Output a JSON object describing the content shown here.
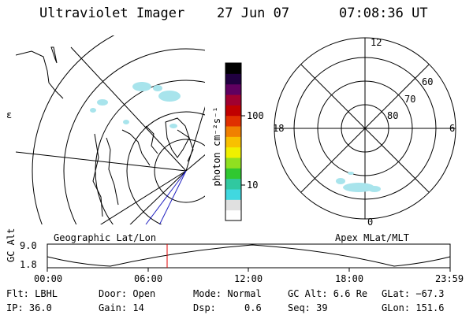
{
  "header": {
    "instrument": "Ultraviolet Imager",
    "date": "27 Jun 07",
    "time": "07:08:36 UT"
  },
  "colorbar": {
    "unit_label": "photon cm⁻²s⁻¹",
    "ticks": [
      "100",
      "10"
    ],
    "colors": [
      "#ffffff",
      "#e0e0e0",
      "#40d8e0",
      "#30c8a0",
      "#30c830",
      "#90e020",
      "#f0f000",
      "#f8c000",
      "#f08000",
      "#e03000",
      "#c00000",
      "#a00030",
      "#600060",
      "#200040",
      "#000000"
    ]
  },
  "left_map": {
    "caption": "Geographic Lat/Lon",
    "edge_label": "ε"
  },
  "right_map": {
    "caption": "Apex MLat/MLT",
    "mlt_labels": {
      "top": "12",
      "left": "18",
      "right": "6",
      "bottom": "0"
    },
    "mlat_labels": [
      "60",
      "70",
      "80"
    ]
  },
  "altitude_plot": {
    "ylabel": "GC Alt",
    "yticks": [
      "9.0",
      "1.8"
    ],
    "xticks": [
      "00:00",
      "06:00",
      "12:00",
      "18:00",
      "23:59"
    ],
    "marker_time": "07:08"
  },
  "footer": {
    "flt": "Flt: LBHL",
    "ip": "IP: 36.0",
    "door": "Door: Open",
    "gain": "Gain: 14",
    "mode": "Mode: Normal",
    "dsp": "Dsp:     0.6",
    "gc_alt": "GC Alt: 6.6 Re",
    "seq": "Seq: 39",
    "glat": "GLat: −67.3",
    "glon": "GLon: 151.6"
  }
}
